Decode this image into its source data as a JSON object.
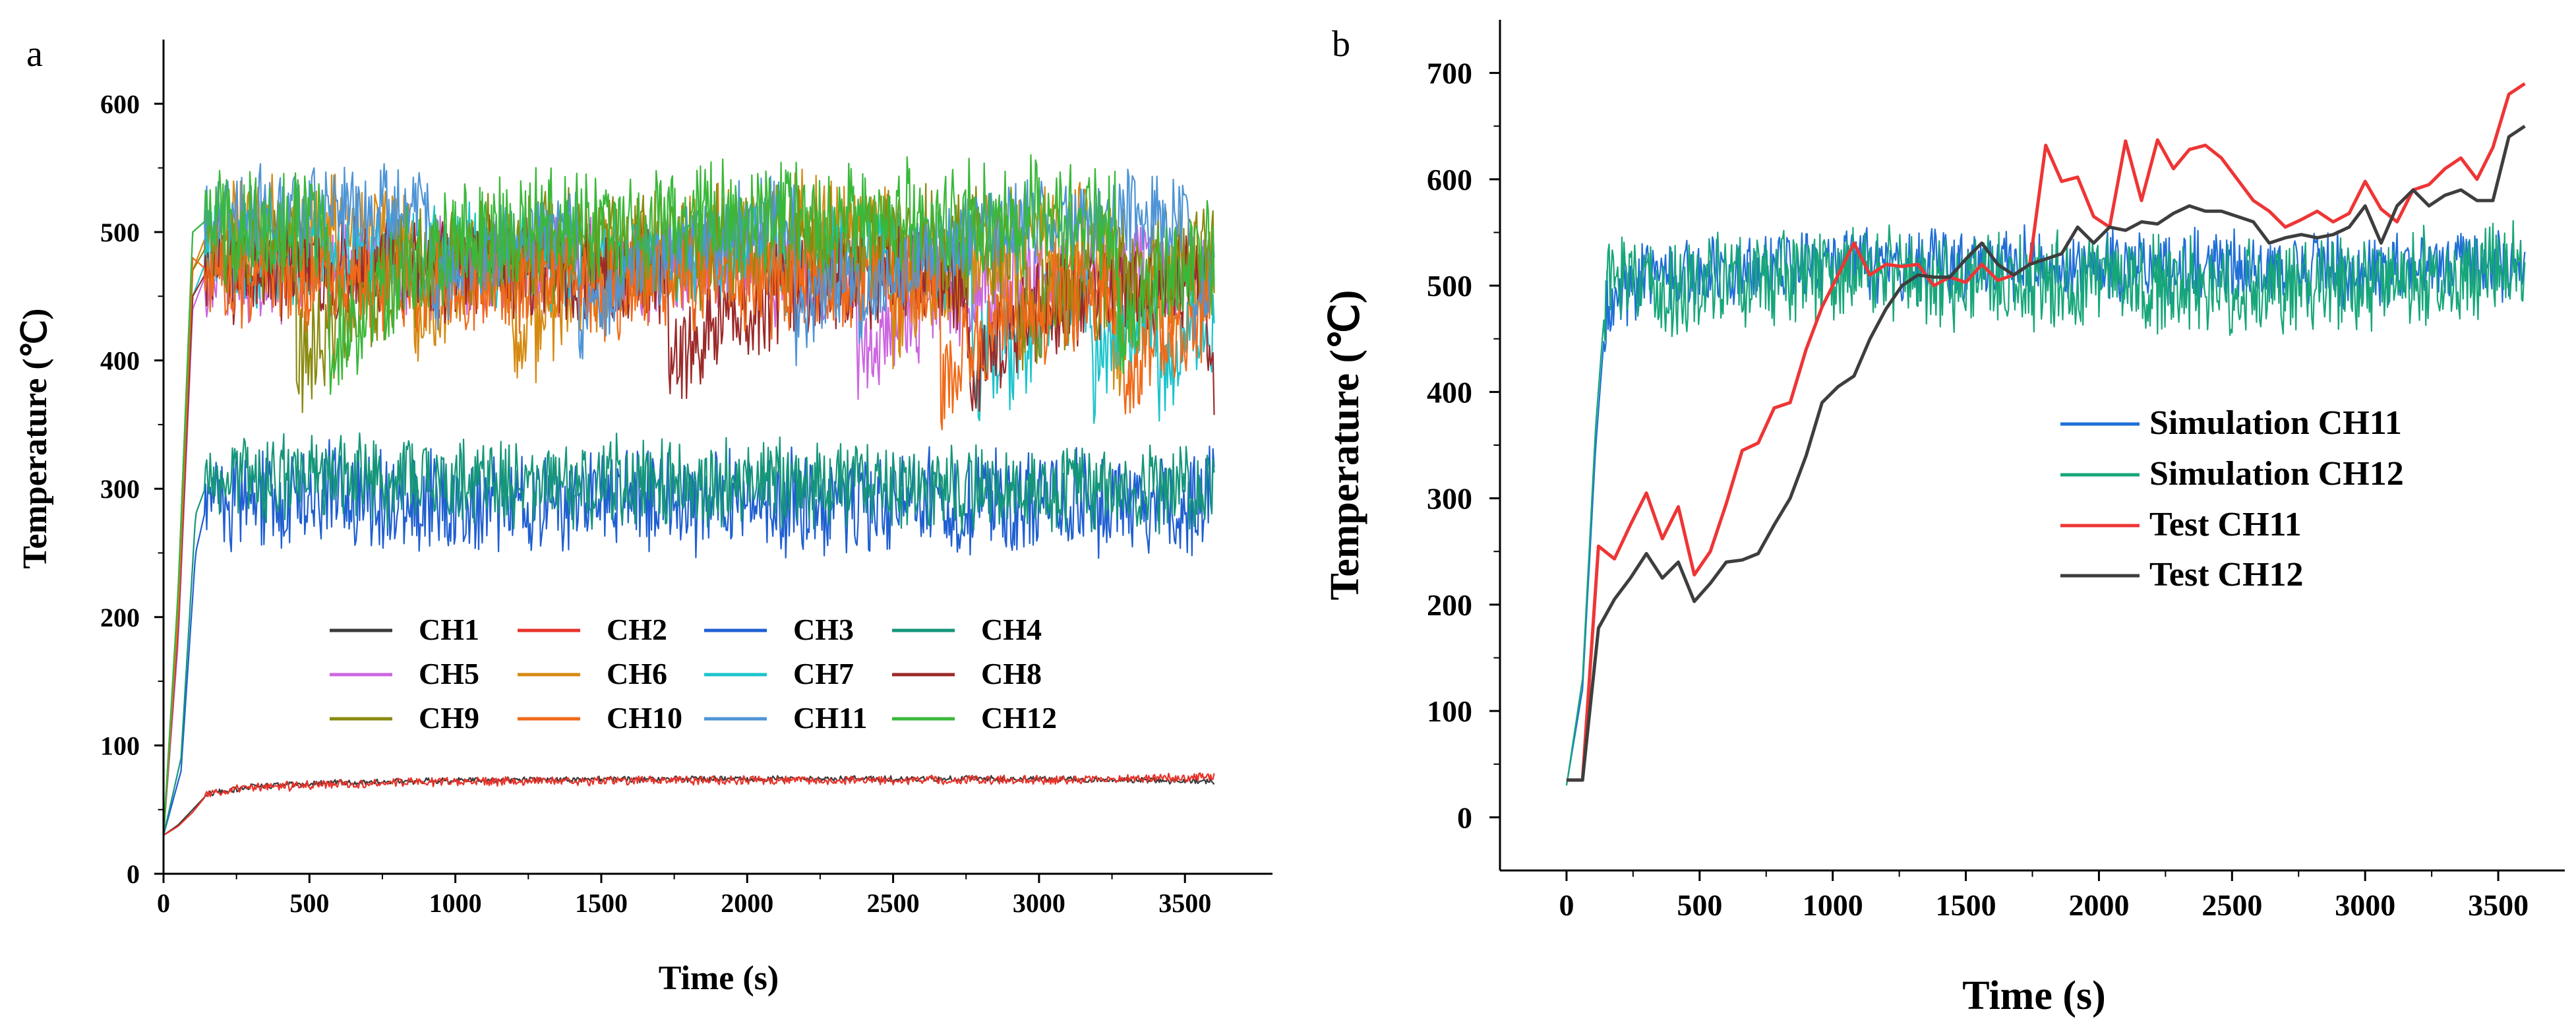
{
  "chart_data": [
    {
      "type": "line",
      "panel_label": "a",
      "title": "",
      "xlabel": "Time (s)",
      "ylabel": "Temperature (℃)",
      "xlim": [
        0,
        3800
      ],
      "ylim": [
        0,
        650
      ],
      "xticks": [
        0,
        500,
        1000,
        1500,
        2000,
        2500,
        3000,
        3500
      ],
      "yticks": [
        0,
        100,
        200,
        300,
        400,
        500,
        600
      ],
      "legend_position": "lower-center",
      "series": [
        {
          "name": "CH1",
          "color": "#3a3a3a",
          "group": "base",
          "noise": 2,
          "x": [
            0,
            50,
            100,
            150,
            300,
            600,
            1000,
            2000,
            3000,
            3600
          ],
          "y": [
            30,
            38,
            50,
            62,
            68,
            71,
            73,
            74,
            74,
            72
          ]
        },
        {
          "name": "CH2",
          "color": "#e8332a",
          "group": "base",
          "noise": 3,
          "x": [
            0,
            50,
            100,
            150,
            300,
            600,
            1000,
            2000,
            3000,
            3600
          ],
          "y": [
            30,
            37,
            48,
            62,
            67,
            70,
            72,
            73,
            73,
            75
          ]
        },
        {
          "name": "CH3",
          "color": "#1f5fd1",
          "group": "mid",
          "noise": 35,
          "x": [
            0,
            60,
            110,
            150,
            300,
            1000,
            2000,
            3000,
            3600
          ],
          "y": [
            30,
            80,
            250,
            290,
            295,
            290,
            290,
            288,
            290
          ]
        },
        {
          "name": "CH4",
          "color": "#15967a",
          "group": "mid",
          "noise": 30,
          "x": [
            0,
            60,
            110,
            150,
            300,
            1000,
            2000,
            3000,
            3600
          ],
          "y": [
            30,
            90,
            280,
            305,
            310,
            305,
            305,
            300,
            300
          ]
        },
        {
          "name": "CH5",
          "color": "#cc66e0",
          "group": "high",
          "noise": 35,
          "x": [
            0,
            50,
            100,
            150,
            300,
            1000,
            2000,
            3000,
            3600
          ],
          "y": [
            30,
            180,
            440,
            470,
            470,
            470,
            470,
            470,
            470
          ]
        },
        {
          "name": "CH6",
          "color": "#d68a12",
          "group": "high",
          "noise": 40,
          "x": [
            0,
            50,
            100,
            150,
            300,
            1000,
            2000,
            3000,
            3600
          ],
          "y": [
            30,
            200,
            470,
            500,
            500,
            500,
            500,
            500,
            500
          ]
        },
        {
          "name": "CH7",
          "color": "#1cc4cc",
          "group": "high",
          "noise": 35,
          "x": [
            0,
            50,
            100,
            150,
            300,
            1000,
            2000,
            3000,
            3600
          ],
          "y": [
            30,
            190,
            450,
            480,
            480,
            480,
            480,
            480,
            480
          ]
        },
        {
          "name": "CH8",
          "color": "#9c2a2a",
          "group": "high",
          "noise": 35,
          "x": [
            0,
            50,
            100,
            150,
            300,
            1000,
            2000,
            3000,
            3600
          ],
          "y": [
            30,
            190,
            450,
            470,
            470,
            470,
            470,
            470,
            470
          ]
        },
        {
          "name": "CH9",
          "color": "#8a8a10",
          "group": "high",
          "noise": 40,
          "x": [
            0,
            50,
            100,
            150,
            300,
            1000,
            2000,
            3000,
            3600
          ],
          "y": [
            30,
            200,
            470,
            490,
            490,
            490,
            490,
            490,
            490
          ]
        },
        {
          "name": "CH10",
          "color": "#f06a18",
          "group": "high",
          "noise": 35,
          "x": [
            0,
            50,
            100,
            150,
            300,
            1000,
            2000,
            3000,
            3600
          ],
          "y": [
            30,
            200,
            480,
            470,
            460,
            460,
            460,
            460,
            460
          ]
        },
        {
          "name": "CH11",
          "color": "#4f95d6",
          "group": "high",
          "noise": 30,
          "x": [
            0,
            50,
            100,
            150,
            300,
            1000,
            2000,
            3000,
            3600
          ],
          "y": [
            30,
            220,
            500,
            510,
            515,
            515,
            515,
            515,
            515
          ]
        },
        {
          "name": "CH12",
          "color": "#3ab83a",
          "group": "high",
          "noise": 40,
          "x": [
            0,
            50,
            100,
            150,
            300,
            1000,
            2000,
            3000,
            3600
          ],
          "y": [
            30,
            220,
            500,
            510,
            500,
            510,
            510,
            510,
            510
          ]
        }
      ]
    },
    {
      "type": "line",
      "panel_label": "b",
      "title": "",
      "xlabel": "Time (s)",
      "ylabel": "Temperature (℃)",
      "xlim": [
        -250,
        3750
      ],
      "ylim": [
        -50,
        750
      ],
      "xticks": [
        0,
        500,
        1000,
        1500,
        2000,
        2500,
        3000,
        3500
      ],
      "yticks": [
        0,
        100,
        200,
        300,
        400,
        500,
        600,
        700
      ],
      "legend_position": "right-center",
      "series": [
        {
          "name": "Simulation CH11",
          "color": "#1f6fd6",
          "noise": 30,
          "x": [
            0,
            60,
            110,
            150,
            300,
            1000,
            2000,
            3000,
            3600
          ],
          "y": [
            30,
            120,
            350,
            480,
            510,
            520,
            520,
            515,
            520
          ]
        },
        {
          "name": "Simulation CH12",
          "color": "#17a67a",
          "noise": 40,
          "x": [
            0,
            60,
            110,
            150,
            300,
            1000,
            2000,
            3000,
            3600
          ],
          "y": [
            30,
            130,
            370,
            500,
            500,
            510,
            500,
            500,
            520
          ]
        },
        {
          "name": "Test CH11",
          "color": "#ee3535",
          "noise": 0,
          "x": [
            0,
            60,
            120,
            180,
            240,
            300,
            360,
            420,
            480,
            540,
            600,
            660,
            720,
            780,
            840,
            900,
            960,
            1020,
            1080,
            1140,
            1200,
            1260,
            1320,
            1380,
            1440,
            1500,
            1560,
            1620,
            1680,
            1740,
            1800,
            1860,
            1920,
            1980,
            2040,
            2100,
            2160,
            2220,
            2280,
            2340,
            2400,
            2460,
            2520,
            2580,
            2640,
            2700,
            2760,
            2820,
            2880,
            2940,
            3000,
            3060,
            3120,
            3180,
            3240,
            3300,
            3360,
            3420,
            3480,
            3540,
            3600
          ],
          "y": [
            35,
            35,
            255,
            243,
            275,
            305,
            262,
            292,
            228,
            250,
            295,
            345,
            352,
            385,
            390,
            440,
            480,
            510,
            540,
            510,
            520,
            518,
            520,
            500,
            508,
            503,
            520,
            505,
            510,
            520,
            632,
            598,
            602,
            565,
            555,
            636,
            580,
            637,
            610,
            628,
            632,
            620,
            600,
            580,
            570,
            555,
            562,
            570,
            560,
            568,
            598,
            572,
            560,
            590,
            595,
            610,
            620,
            600,
            630,
            680,
            690
          ]
        },
        {
          "name": "Test CH12",
          "color": "#3e3e3e",
          "noise": 0,
          "x": [
            0,
            60,
            120,
            180,
            240,
            300,
            360,
            420,
            480,
            540,
            600,
            660,
            720,
            780,
            840,
            900,
            960,
            1020,
            1080,
            1140,
            1200,
            1260,
            1320,
            1380,
            1440,
            1500,
            1560,
            1620,
            1680,
            1740,
            1800,
            1860,
            1920,
            1980,
            2040,
            2100,
            2160,
            2220,
            2280,
            2340,
            2400,
            2460,
            2520,
            2580,
            2640,
            2700,
            2760,
            2820,
            2880,
            2940,
            3000,
            3060,
            3120,
            3180,
            3240,
            3300,
            3360,
            3420,
            3480,
            3540,
            3600
          ],
          "y": [
            35,
            35,
            178,
            205,
            225,
            248,
            225,
            240,
            203,
            220,
            240,
            242,
            248,
            275,
            300,
            340,
            390,
            405,
            415,
            450,
            478,
            500,
            510,
            508,
            508,
            525,
            540,
            520,
            510,
            520,
            525,
            530,
            555,
            540,
            555,
            552,
            560,
            558,
            568,
            575,
            570,
            570,
            565,
            560,
            540,
            545,
            548,
            545,
            548,
            555,
            575,
            540,
            575,
            590,
            575,
            585,
            590,
            580,
            580,
            640,
            650
          ]
        }
      ]
    }
  ]
}
